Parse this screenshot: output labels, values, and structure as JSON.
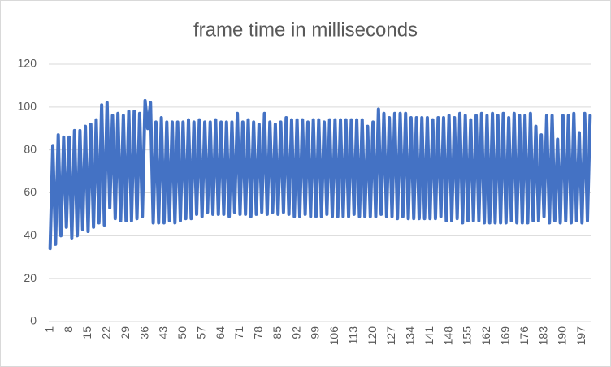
{
  "chart_data": {
    "type": "line",
    "title": "frame time in milliseconds",
    "categories": [
      1,
      null,
      null,
      null,
      null,
      null,
      null,
      8,
      null,
      null,
      null,
      null,
      null,
      null,
      15,
      null,
      null,
      null,
      null,
      null,
      null,
      22,
      null,
      null,
      null,
      null,
      null,
      null,
      29,
      null,
      null,
      null,
      null,
      null,
      null,
      36,
      null,
      null,
      null,
      null,
      null,
      null,
      43,
      null,
      null,
      null,
      null,
      null,
      null,
      50,
      null,
      null,
      null,
      null,
      null,
      null,
      57,
      null,
      null,
      null,
      null,
      null,
      null,
      64,
      null,
      null,
      null,
      null,
      null,
      null,
      71,
      null,
      null,
      null,
      null,
      null,
      null,
      78,
      null,
      null,
      null,
      null,
      null,
      null,
      85,
      null,
      null,
      null,
      null,
      null,
      null,
      92,
      null,
      null,
      null,
      null,
      null,
      null,
      99,
      null,
      null,
      null,
      null,
      null,
      null,
      106,
      null,
      null,
      null,
      null,
      null,
      null,
      113,
      null,
      null,
      null,
      null,
      null,
      null,
      120,
      null,
      null,
      null,
      null,
      null,
      null,
      127,
      null,
      null,
      null,
      null,
      null,
      null,
      134,
      null,
      null,
      null,
      null,
      null,
      null,
      141,
      null,
      null,
      null,
      null,
      null,
      null,
      148,
      null,
      null,
      null,
      null,
      null,
      null,
      155,
      null,
      null,
      null,
      null,
      null,
      null,
      162,
      null,
      null,
      null,
      null,
      null,
      null,
      169,
      null,
      null,
      null,
      null,
      null,
      null,
      176,
      null,
      null,
      null,
      null,
      null,
      null,
      183,
      null,
      null,
      null,
      null,
      null,
      null,
      190,
      null,
      null,
      null,
      null,
      null,
      null,
      197,
      null,
      null,
      null
    ],
    "values": [
      34,
      82,
      36,
      87,
      40,
      86,
      44,
      86,
      39,
      89,
      40,
      89,
      43,
      91,
      42,
      92,
      44,
      94,
      46,
      101,
      45,
      102,
      53,
      96,
      48,
      97,
      47,
      96,
      47,
      98,
      47,
      98,
      48,
      97,
      49,
      103,
      90,
      102,
      46,
      93,
      46,
      95,
      46,
      93,
      47,
      93,
      46,
      93,
      47,
      93,
      48,
      94,
      48,
      93,
      50,
      94,
      49,
      93,
      51,
      93,
      50,
      94,
      50,
      93,
      50,
      93,
      49,
      93,
      51,
      97,
      50,
      93,
      50,
      94,
      49,
      93,
      50,
      92,
      51,
      97,
      50,
      93,
      51,
      92,
      50,
      93,
      51,
      95,
      50,
      94,
      49,
      94,
      49,
      94,
      50,
      93,
      49,
      94,
      49,
      94,
      49,
      93,
      50,
      94,
      49,
      94,
      49,
      94,
      49,
      94,
      49,
      94,
      50,
      94,
      49,
      94,
      49,
      91,
      49,
      93,
      49,
      99,
      50,
      97,
      49,
      95,
      49,
      97,
      48,
      97,
      49,
      97,
      48,
      95,
      48,
      95,
      48,
      95,
      48,
      95,
      48,
      94,
      48,
      95,
      49,
      95,
      47,
      96,
      47,
      95,
      48,
      97,
      46,
      96,
      47,
      94,
      47,
      96,
      47,
      97,
      46,
      96,
      46,
      97,
      46,
      96,
      46,
      97,
      46,
      95,
      47,
      97,
      46,
      96,
      46,
      96,
      46,
      97,
      47,
      91,
      47,
      87,
      49,
      96,
      46,
      96,
      47,
      85,
      46,
      96,
      47,
      96,
      46,
      97,
      47,
      88,
      46,
      97,
      47,
      96
    ],
    "color": "#4472c4",
    "ylim": [
      0,
      120
    ],
    "yticks": [
      0,
      20,
      40,
      60,
      80,
      100,
      120
    ],
    "grid": true
  }
}
